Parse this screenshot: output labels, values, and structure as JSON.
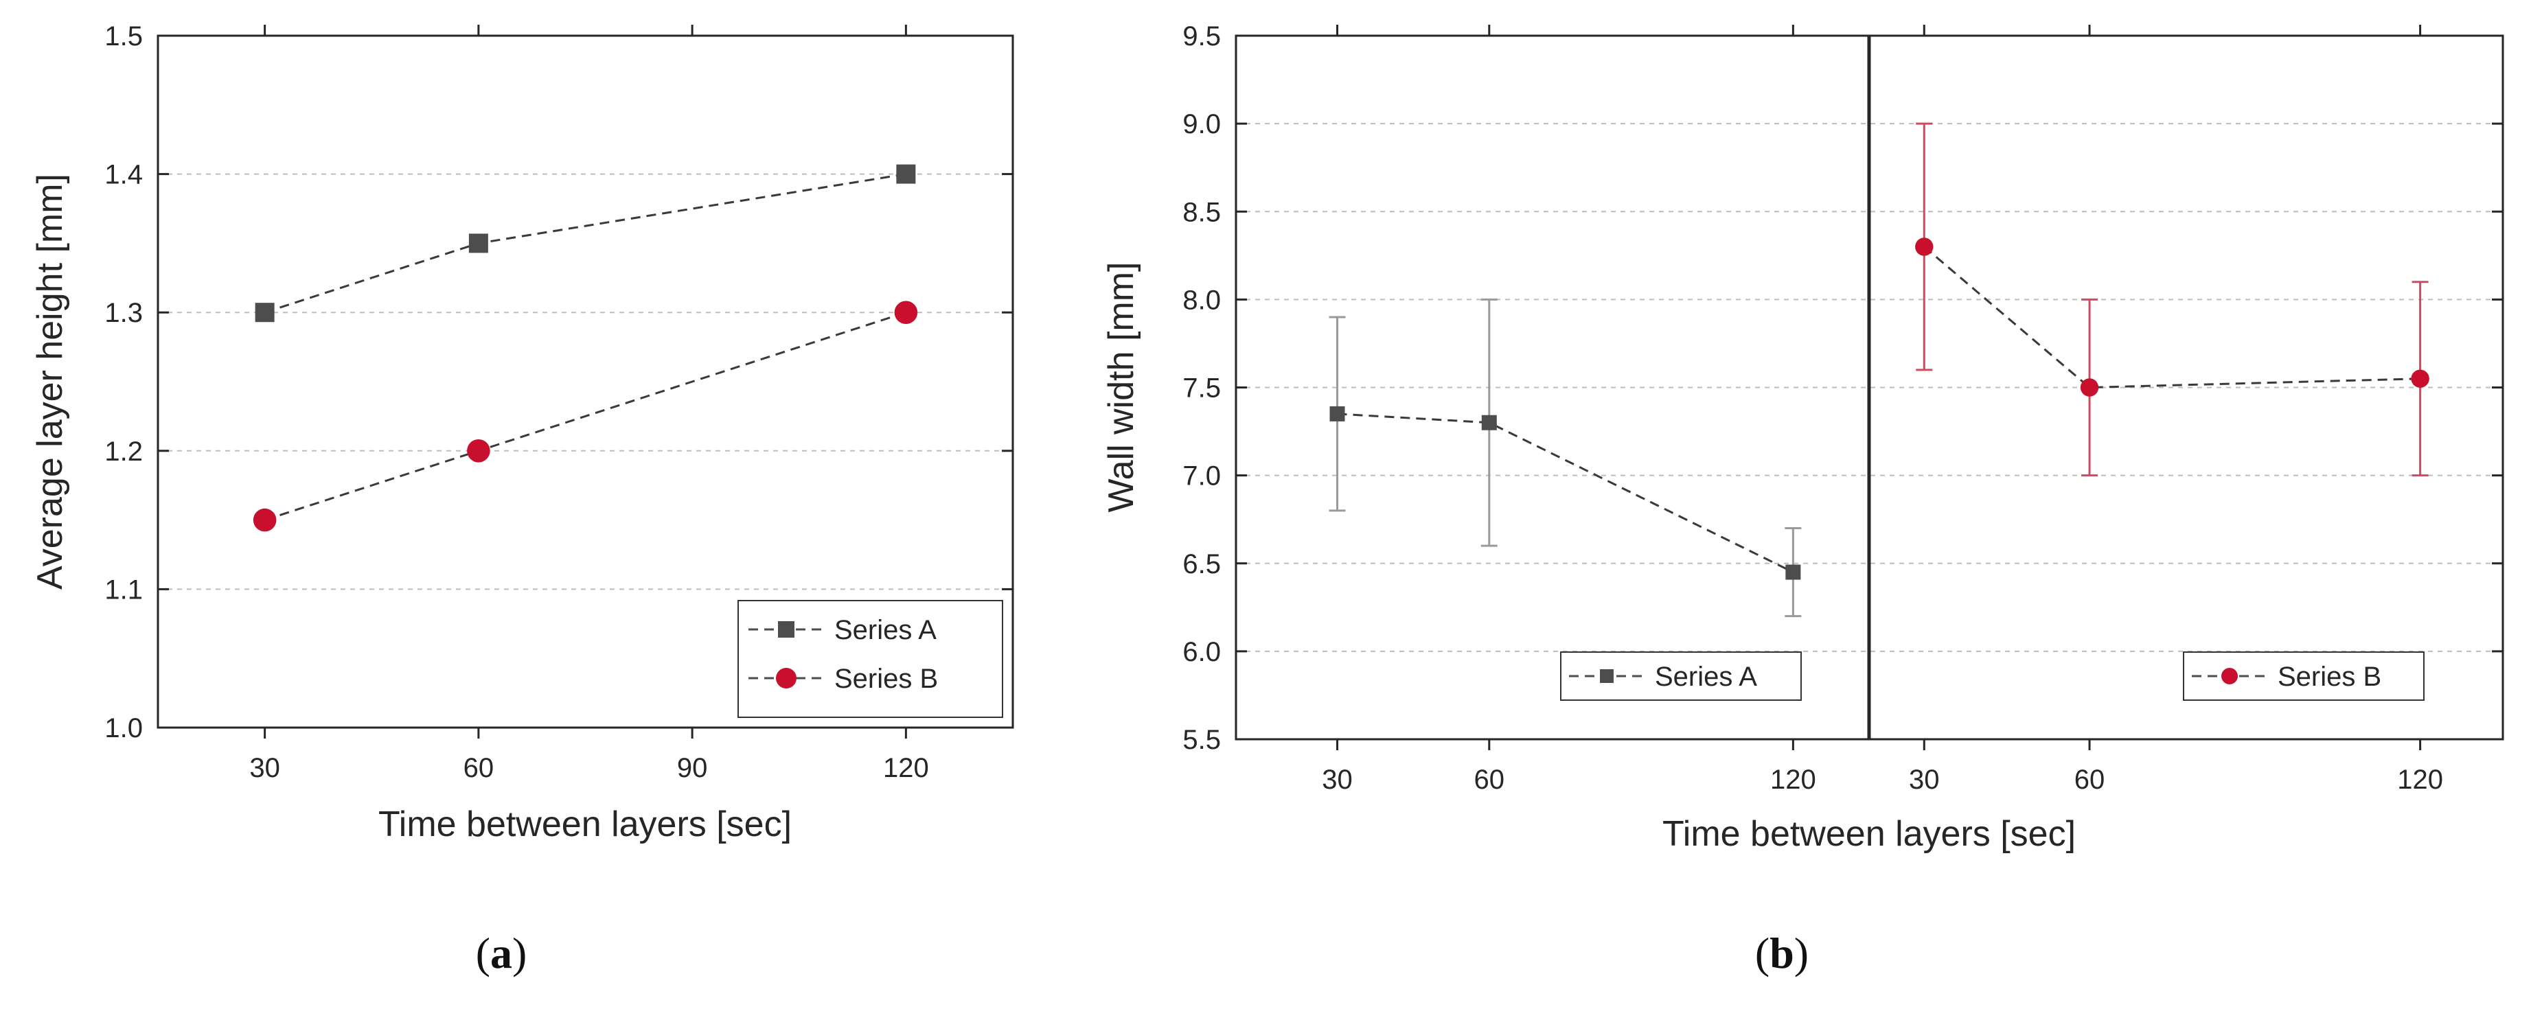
{
  "chart_data": [
    {
      "id": "a",
      "type": "line",
      "caption": {
        "open": "(",
        "letter": "a",
        "close": ")"
      },
      "xlabel": "Time between layers [sec]",
      "ylabel": "Average layer height [mm]",
      "xlim": [
        15,
        135
      ],
      "ylim": [
        1.0,
        1.5
      ],
      "xticks": [
        30,
        60,
        90,
        120
      ],
      "yticks": [
        1.0,
        1.1,
        1.2,
        1.3,
        1.4,
        1.5
      ],
      "ytick_labels": [
        "1.0",
        "1.1",
        "1.2",
        "1.3",
        "1.4",
        "1.5"
      ],
      "grid": "horizontal dashed",
      "legend": {
        "position": "bottom-right"
      },
      "series": [
        {
          "name": "Series A",
          "marker": "square",
          "color": "#4d4d4d",
          "x": [
            30,
            60,
            120
          ],
          "y": [
            1.3,
            1.35,
            1.4
          ]
        },
        {
          "name": "Series B",
          "marker": "circle",
          "color": "#c8102e",
          "x": [
            30,
            60,
            120
          ],
          "y": [
            1.15,
            1.2,
            1.3
          ]
        }
      ]
    },
    {
      "id": "b",
      "type": "line",
      "caption": {
        "open": "(",
        "letter": "b",
        "close": ")"
      },
      "xlabel": "Time between layers [sec]",
      "ylabel": "Wall width [mm]",
      "ylim": [
        5.5,
        9.5
      ],
      "yticks": [
        5.5,
        6.0,
        6.5,
        7.0,
        7.5,
        8.0,
        8.5,
        9.0,
        9.5
      ],
      "ytick_labels": [
        "5.5",
        "6.0",
        "6.5",
        "7.0",
        "7.5",
        "8.0",
        "8.5",
        "9.0",
        "9.5"
      ],
      "grid": "horizontal dashed",
      "panels": [
        {
          "xlim": [
            10,
            135
          ],
          "xticks": [
            30,
            60,
            120
          ],
          "legend": {
            "position": "bottom-right"
          },
          "series": [
            {
              "name": "Series A",
              "marker": "square",
              "color": "#4d4d4d",
              "errcolor": "#9a9a9a",
              "x": [
                30,
                60,
                120
              ],
              "y": [
                7.35,
                7.3,
                6.45
              ],
              "yerr_low": [
                6.8,
                6.6,
                6.2
              ],
              "yerr_high": [
                7.9,
                8.0,
                6.7
              ]
            }
          ]
        },
        {
          "xlim": [
            20,
            135
          ],
          "xticks": [
            30,
            60,
            120
          ],
          "legend": {
            "position": "bottom-right"
          },
          "series": [
            {
              "name": "Series B",
              "marker": "circle",
              "color": "#c8102e",
              "errcolor": "#d24a5e",
              "x": [
                30,
                60,
                120
              ],
              "y": [
                8.3,
                7.5,
                7.55
              ],
              "yerr_low": [
                7.6,
                7.0,
                7.0
              ],
              "yerr_high": [
                9.0,
                8.0,
                8.1
              ]
            }
          ]
        }
      ]
    }
  ]
}
